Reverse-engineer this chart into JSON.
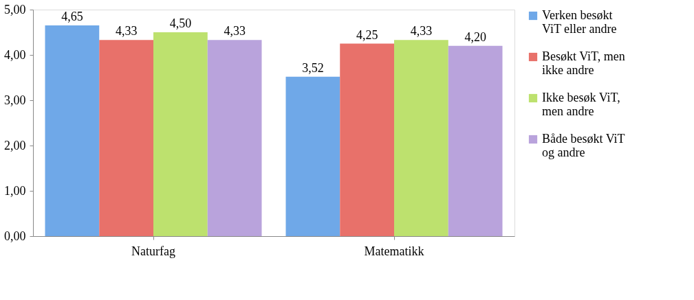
{
  "chart_data": {
    "type": "bar",
    "categories": [
      "Naturfag",
      "Matematikk"
    ],
    "series": [
      {
        "name": "Verken besøkt ViT eller andre",
        "color": "#6fa8e8",
        "values": [
          4.65,
          3.52
        ],
        "value_labels": [
          "4,65",
          "3,52"
        ]
      },
      {
        "name": "Besøkt ViT, men ikke andre",
        "color": "#e8716a",
        "values": [
          4.33,
          4.25
        ],
        "value_labels": [
          "4,33",
          "4,25"
        ]
      },
      {
        "name": "Ikke besøk ViT, men andre",
        "color": "#bde16e",
        "values": [
          4.5,
          4.33
        ],
        "value_labels": [
          "4,50",
          "4,33"
        ]
      },
      {
        "name": "Både besøkt ViT og andre",
        "color": "#b9a3dc",
        "values": [
          4.33,
          4.2
        ],
        "value_labels": [
          "4,33",
          "4,20"
        ]
      }
    ],
    "ylim": [
      0,
      5
    ],
    "yticks": [
      {
        "value": 0,
        "label": "0,00"
      },
      {
        "value": 1,
        "label": "1,00"
      },
      {
        "value": 2,
        "label": "2,00"
      },
      {
        "value": 3,
        "label": "3,00"
      },
      {
        "value": 4,
        "label": "4,00"
      },
      {
        "value": 5,
        "label": "5,00"
      }
    ],
    "grid": false,
    "legend": "right"
  }
}
